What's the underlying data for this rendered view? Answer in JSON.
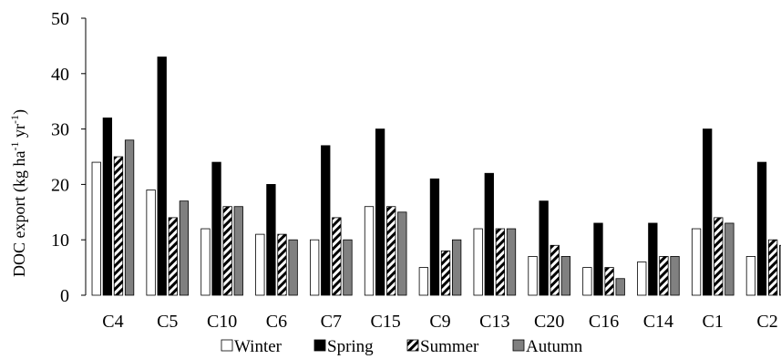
{
  "chart_data": {
    "type": "bar",
    "categories": [
      "C4",
      "C5",
      "C10",
      "C6",
      "C7",
      "C15",
      "C9",
      "C13",
      "C20",
      "C16",
      "C14",
      "C1",
      "C2"
    ],
    "series": [
      {
        "name": "Winter",
        "fill": "#ffffff",
        "values": [
          24,
          19,
          12,
          11,
          10,
          16,
          5,
          12,
          7,
          5,
          6,
          12,
          7
        ]
      },
      {
        "name": "Spring",
        "fill": "#000000",
        "values": [
          32,
          43,
          24,
          20,
          27,
          30,
          21,
          22,
          17,
          13,
          13,
          30,
          24
        ]
      },
      {
        "name": "Summer",
        "fill": "hatch",
        "values": [
          25,
          14,
          16,
          11,
          14,
          16,
          8,
          12,
          9,
          5,
          7,
          14,
          10
        ]
      },
      {
        "name": "Autumn",
        "fill": "#808080",
        "values": [
          28,
          17,
          16,
          10,
          10,
          15,
          10,
          12,
          7,
          3,
          7,
          13,
          9
        ]
      }
    ],
    "ylabel": {
      "main": "DOC export (kg ha",
      "sup1": "-1",
      "mid": " yr",
      "sup2": "-1",
      "end": ")"
    },
    "ylim": [
      0,
      50
    ],
    "yticks": [
      0,
      10,
      20,
      30,
      40,
      50
    ],
    "grid": false,
    "legend_position": "bottom"
  }
}
